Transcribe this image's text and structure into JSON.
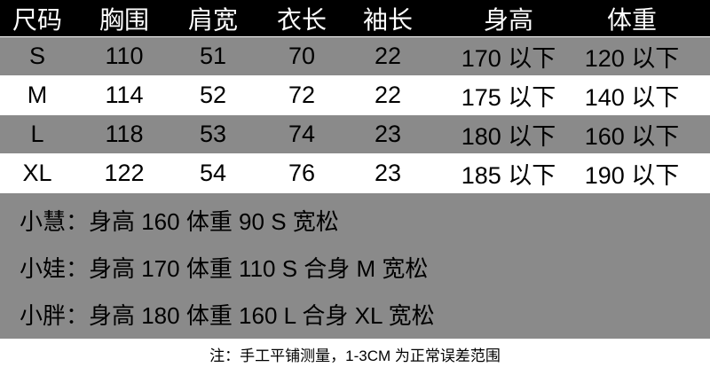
{
  "table": {
    "headers": [
      "尺码",
      "胸围",
      "肩宽",
      "衣长",
      "袖长",
      "身高",
      "体重"
    ],
    "rows": [
      [
        "S",
        "110",
        "51",
        "70",
        "22",
        "170 以下",
        "120 以下"
      ],
      [
        "M",
        "114",
        "52",
        "72",
        "22",
        "175 以下",
        "140 以下"
      ],
      [
        "L",
        "118",
        "53",
        "74",
        "23",
        "180 以下",
        "160 以下"
      ],
      [
        "XL",
        "122",
        "54",
        "76",
        "23",
        "185 以下",
        "190 以下"
      ]
    ]
  },
  "examples": [
    "小慧：身高 160 体重 90 S 宽松",
    "小娃：身高 170 体重 110 S 合身 M 宽松",
    "小胖：身高 180 体重 160 L 合身 XL 宽松"
  ],
  "footnote": "注：手工平铺测量，1-3CM 为正常误差范围",
  "colors": {
    "header_bg": "#000000",
    "stripe_bg": "#8a8a8a",
    "row_bg": "#ffffff"
  }
}
